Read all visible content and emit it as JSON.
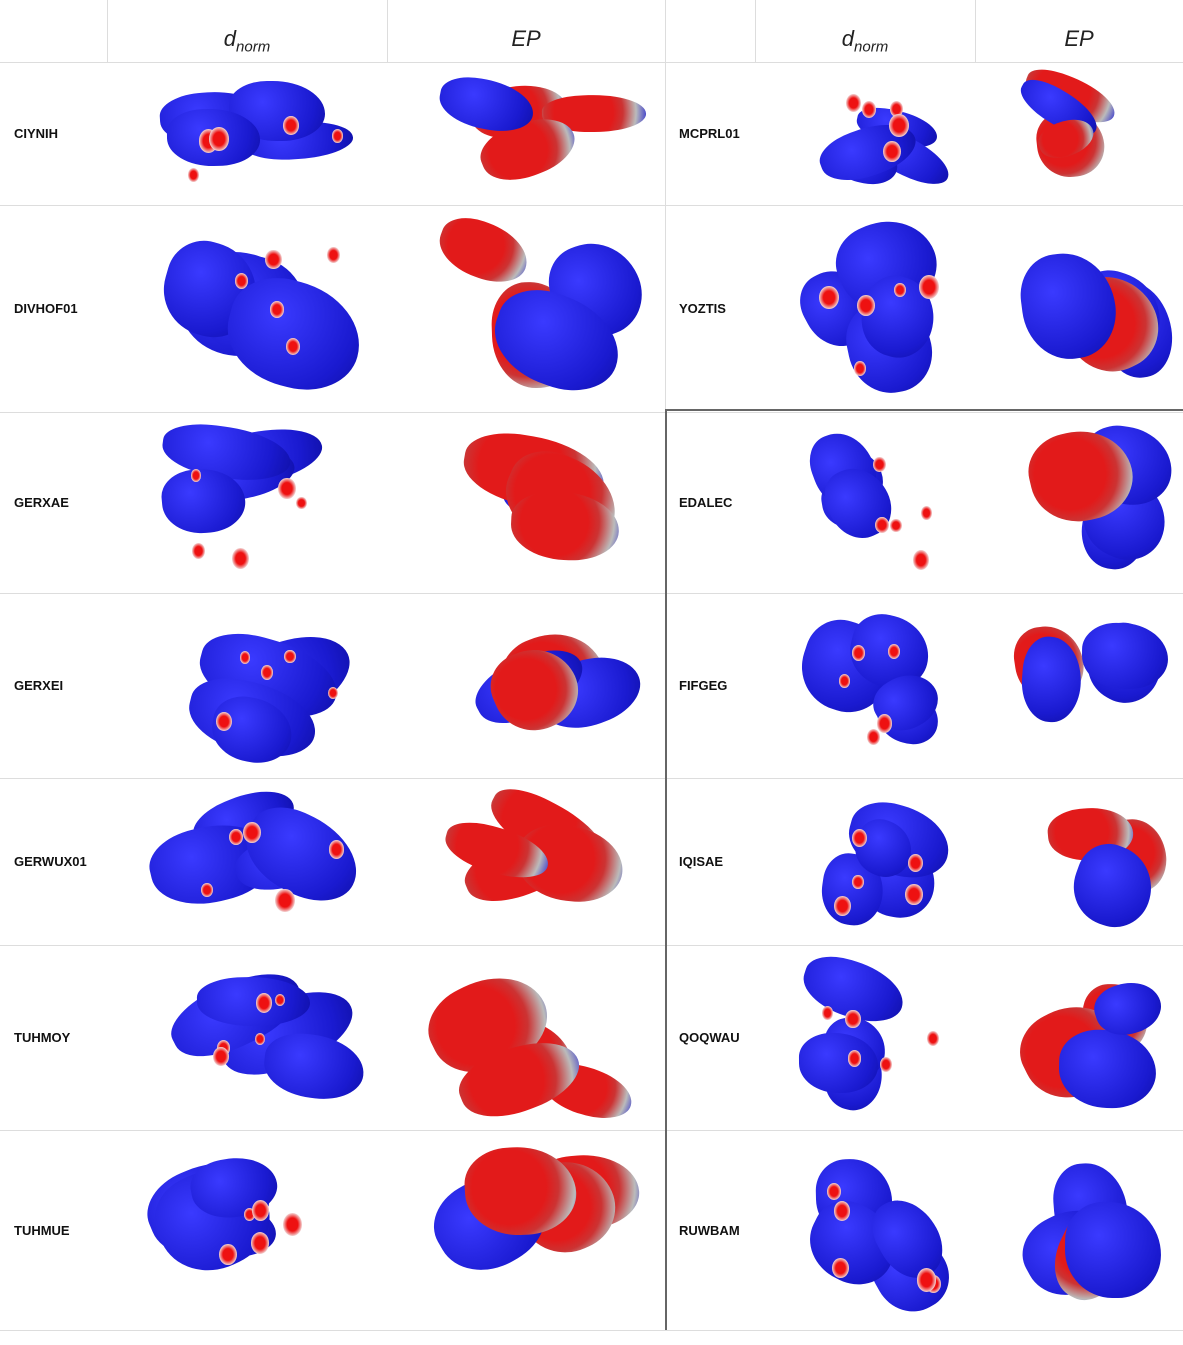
{
  "left": {
    "headers": [
      {
        "main": "d",
        "sub": "norm"
      },
      {
        "main": "EP"
      }
    ],
    "rows": [
      "CIYNIH",
      "DIVHOF01",
      "GERXAE",
      "GERXEI",
      "GERWUX01",
      "TUHMOY",
      "TUHMUE"
    ]
  },
  "right": {
    "headers": [
      {
        "main": "d",
        "sub": "norm"
      },
      {
        "main": "EP"
      }
    ],
    "rows": [
      "MCPRL01",
      "YOZTIS",
      "EDALEC",
      "FIFGEG",
      "IQISAE",
      "QOQWAU",
      "RUWBAM"
    ]
  }
}
